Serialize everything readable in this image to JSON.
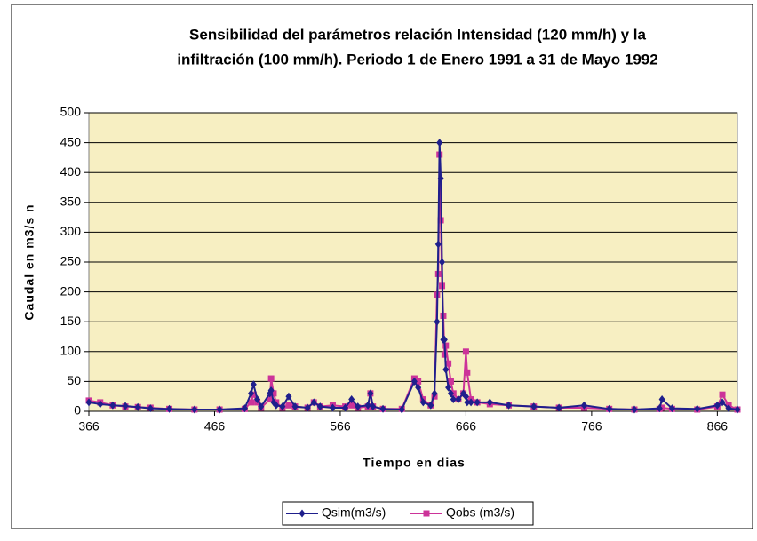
{
  "chart_data": {
    "type": "line",
    "title": [
      "Sensibilidad del parámetros relación Intensidad (120 mm/h) y la",
      "infiltración (100 mm/h). Periodo 1 de Enero 1991 a 31 de Mayo 1992"
    ],
    "x_label": "Tiempo en dias",
    "y_label": "Caudal en m3/s n",
    "x": [
      366,
      375,
      385,
      395,
      405,
      415,
      430,
      450,
      470,
      490,
      495,
      497,
      500,
      503,
      510,
      511,
      513,
      515,
      520,
      525,
      530,
      540,
      545,
      550,
      560,
      570,
      575,
      580,
      588,
      590,
      592,
      600,
      615,
      625,
      628,
      632,
      638,
      641,
      643,
      644,
      645,
      646,
      647,
      648,
      649,
      650,
      652,
      654,
      656,
      660,
      664,
      666,
      667,
      670,
      675,
      685,
      700,
      720,
      740,
      760,
      780,
      800,
      820,
      822,
      830,
      850,
      866,
      870,
      875,
      882
    ],
    "series": [
      {
        "name": "Qsim(m3/s)",
        "color": "#1f1f8c",
        "marker": "diamond",
        "values": [
          15,
          12,
          10,
          9,
          7,
          5,
          4,
          3,
          3,
          5,
          30,
          45,
          20,
          8,
          30,
          35,
          15,
          10,
          8,
          25,
          8,
          6,
          15,
          8,
          6,
          6,
          20,
          8,
          10,
          30,
          8,
          4,
          3,
          50,
          40,
          15,
          10,
          30,
          150,
          280,
          450,
          390,
          250,
          120,
          120,
          70,
          40,
          30,
          20,
          20,
          30,
          25,
          15,
          15,
          15,
          15,
          10,
          8,
          6,
          10,
          4,
          3,
          5,
          20,
          5,
          4,
          10,
          15,
          5,
          3
        ]
      },
      {
        "name": "Qobs (m3/s)",
        "color": "#cc3399",
        "marker": "square",
        "values": [
          18,
          15,
          10,
          8,
          7,
          6,
          4,
          3,
          3,
          4,
          15,
          28,
          15,
          6,
          20,
          55,
          30,
          15,
          6,
          10,
          8,
          6,
          15,
          8,
          10,
          8,
          10,
          6,
          8,
          30,
          8,
          4,
          4,
          55,
          50,
          20,
          10,
          25,
          195,
          230,
          430,
          320,
          210,
          160,
          95,
          110,
          80,
          50,
          30,
          20,
          30,
          100,
          65,
          20,
          15,
          12,
          10,
          8,
          6,
          6,
          4,
          3,
          4,
          6,
          4,
          3,
          8,
          28,
          10,
          3
        ]
      }
    ],
    "xlim": [
      366,
      882
    ],
    "xticks": [
      366,
      466,
      566,
      666,
      766,
      866
    ],
    "ylim": [
      0,
      500
    ],
    "yticks": [
      0,
      50,
      100,
      150,
      200,
      250,
      300,
      350,
      400,
      450,
      500
    ],
    "grid": true,
    "legend": "bottom"
  }
}
